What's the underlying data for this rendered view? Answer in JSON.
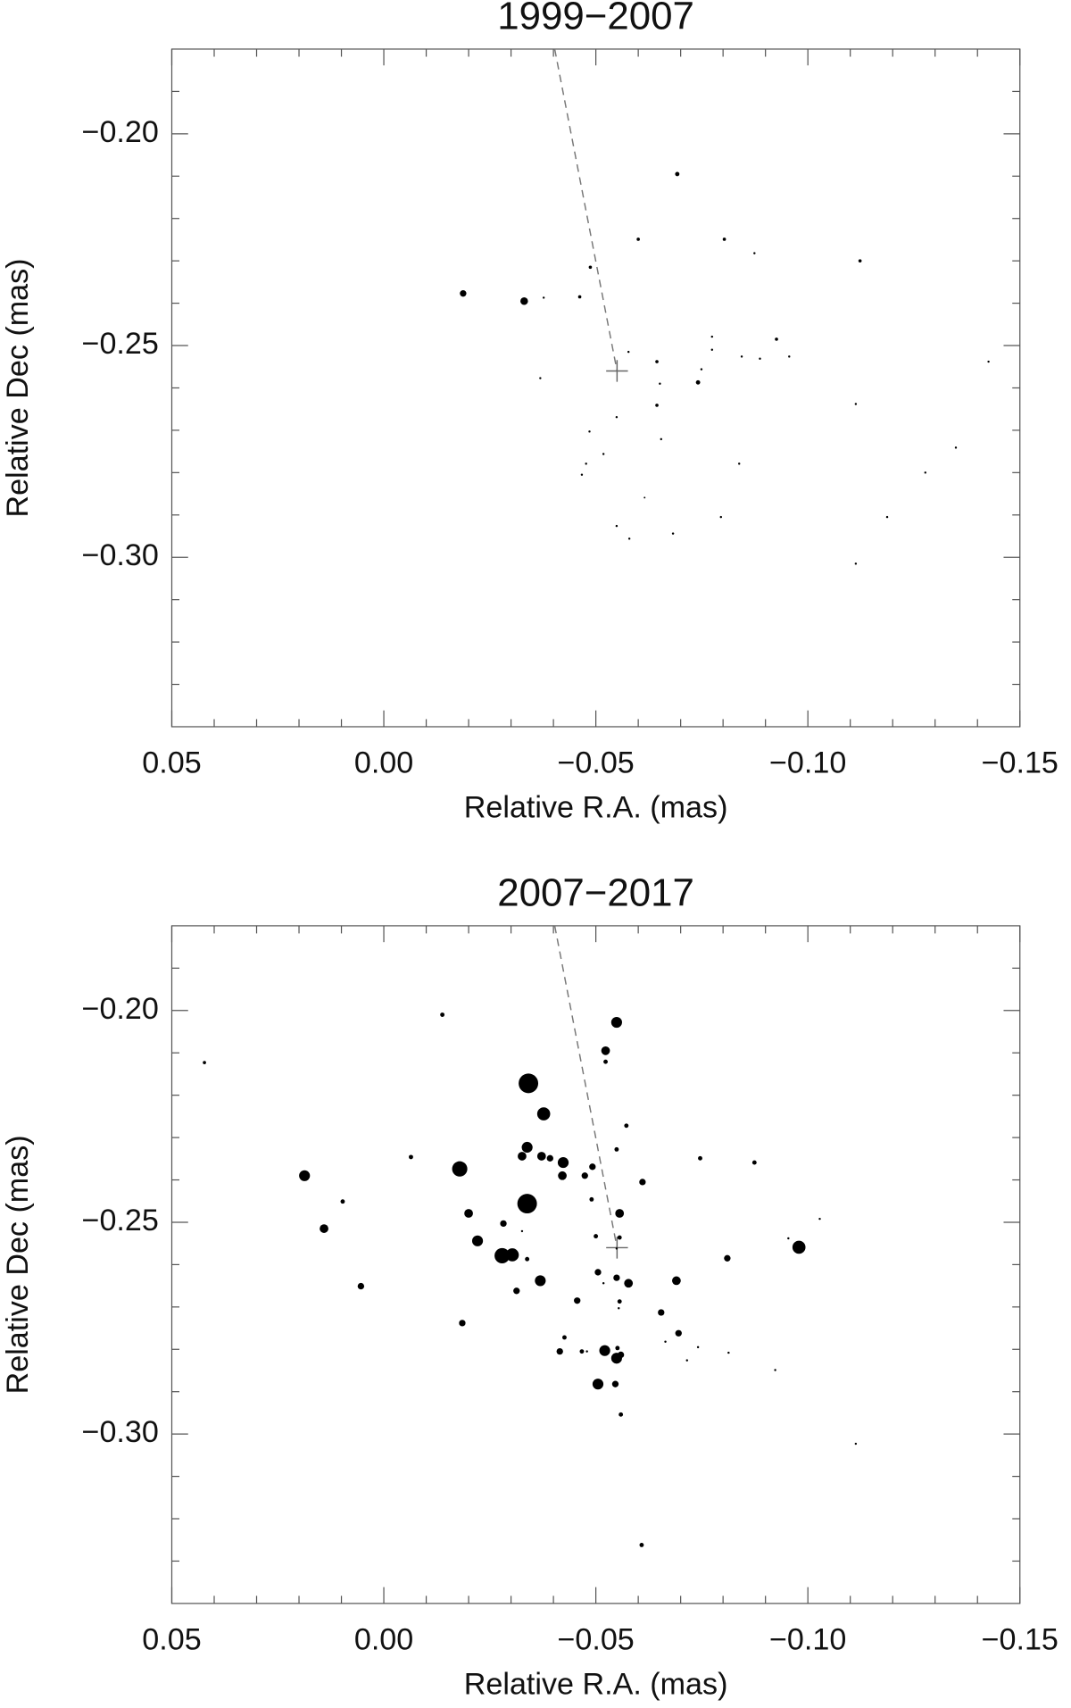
{
  "chart_data": [
    {
      "type": "scatter",
      "title": "1999−2007",
      "x_label": "Relative R.A. (mas)",
      "y_label": "Relative Dec (mas)",
      "xlim": [
        0.05,
        -0.15
      ],
      "ylim": [
        -0.34,
        -0.18
      ],
      "xticks": [
        0.05,
        {
          "value": 0,
          "label": "0.00"
        },
        {
          "value": -0.05,
          "label": "−0.05"
        },
        {
          "value": -0.1,
          "label": "−0.10"
        },
        {
          "value": -0.15,
          "label": "−0.15"
        }
      ],
      "yticks": [
        {
          "value": -0.2,
          "label": "−0.20"
        },
        {
          "value": -0.25,
          "label": "−0.25"
        },
        {
          "value": -0.3,
          "label": "−0.30"
        }
      ],
      "xminorticks": [
        0.04,
        0.03,
        0.02,
        0.01,
        -0.01,
        -0.02,
        -0.03,
        -0.04,
        -0.06,
        -0.07,
        -0.08,
        -0.09,
        -0.11,
        -0.12,
        -0.13,
        -0.14
      ],
      "yminorticks": [
        -0.19,
        -0.21,
        -0.22,
        -0.23,
        -0.24,
        -0.26,
        -0.27,
        -0.28,
        -0.29,
        -0.31,
        -0.32,
        -0.33
      ],
      "color": "#000000",
      "reference": {
        "x": -0.055,
        "y": -0.256
      },
      "reference_line": {
        "x": [
          -0.0403,
          -0.055
        ],
        "y": [
          -0.18,
          -0.256
        ]
      },
      "x": [
        -0.0692,
        -0.0187,
        -0.0331,
        -0.0377,
        -0.0462,
        -0.0487,
        -0.06,
        -0.0803,
        -0.0874,
        -0.1123,
        -0.0577,
        -0.0644,
        -0.0651,
        -0.0741,
        -0.0774,
        -0.0774,
        -0.0749,
        -0.0844,
        -0.0926,
        -0.0887,
        -0.0956,
        -0.1426,
        -0.0369,
        -0.0549,
        -0.0644,
        -0.0654,
        -0.0485,
        -0.0518,
        -0.0477,
        -0.0467,
        -0.0838,
        -0.1113,
        -0.1349,
        -0.1277,
        -0.1187,
        -0.0795,
        -0.0615,
        -0.0549,
        -0.0579,
        -0.0682,
        -0.1113
      ],
      "y": [
        -0.2095,
        -0.2377,
        -0.2395,
        -0.2387,
        -0.2385,
        -0.2315,
        -0.2249,
        -0.2249,
        -0.2282,
        -0.23,
        -0.2515,
        -0.2538,
        -0.259,
        -0.2587,
        -0.251,
        -0.2479,
        -0.2556,
        -0.2526,
        -0.2485,
        -0.2531,
        -0.2526,
        -0.2538,
        -0.2577,
        -0.2669,
        -0.2641,
        -0.2721,
        -0.2703,
        -0.2756,
        -0.2779,
        -0.2805,
        -0.2779,
        -0.2638,
        -0.2741,
        -0.28,
        -0.2905,
        -0.2905,
        -0.2859,
        -0.2926,
        -0.2956,
        -0.2944,
        -0.3015
      ],
      "sizes": [
        2,
        3,
        3.5,
        1,
        1.5,
        1.5,
        1.5,
        1.5,
        1,
        1.5,
        1,
        1.5,
        1,
        2,
        1,
        1,
        1,
        1,
        1.5,
        1,
        1,
        1,
        1,
        1,
        1.5,
        1,
        1,
        1,
        1,
        1,
        1,
        1,
        1,
        1,
        1,
        1,
        0.8,
        1,
        1,
        1,
        1
      ]
    },
    {
      "type": "scatter",
      "title": "2007−2017",
      "x_label": "Relative R.A. (mas)",
      "y_label": "Relative Dec (mas)",
      "xlim": [
        0.05,
        -0.15
      ],
      "ylim": [
        -0.34,
        -0.18
      ],
      "xticks": [
        0.05,
        {
          "value": 0,
          "label": "0.00"
        },
        {
          "value": -0.05,
          "label": "−0.05"
        },
        {
          "value": -0.1,
          "label": "−0.10"
        },
        {
          "value": -0.15,
          "label": "−0.15"
        }
      ],
      "yticks": [
        {
          "value": -0.2,
          "label": "−0.20"
        },
        {
          "value": -0.25,
          "label": "−0.25"
        },
        {
          "value": -0.3,
          "label": "−0.30"
        }
      ],
      "xminorticks": [
        0.04,
        0.03,
        0.02,
        0.01,
        -0.01,
        -0.02,
        -0.03,
        -0.04,
        -0.06,
        -0.07,
        -0.08,
        -0.09,
        -0.11,
        -0.12,
        -0.13,
        -0.14
      ],
      "yminorticks": [
        -0.19,
        -0.21,
        -0.22,
        -0.23,
        -0.24,
        -0.26,
        -0.27,
        -0.28,
        -0.29,
        -0.31,
        -0.32,
        -0.33
      ],
      "color": "#000000",
      "reference": {
        "x": -0.055,
        "y": -0.256
      },
      "reference_line": {
        "x": [
          -0.0403,
          -0.055
        ],
        "y": [
          -0.18,
          -0.256
        ]
      },
      "x": [
        0.0423,
        -0.0138,
        -0.0549,
        -0.0341,
        -0.0377,
        -0.0523,
        -0.0523,
        -0.0572,
        -0.0549,
        -0.0746,
        -0.0874,
        -0.061,
        0.0187,
        -0.0064,
        -0.0179,
        -0.0326,
        -0.0338,
        -0.0372,
        -0.0392,
        -0.0423,
        -0.0421,
        -0.0474,
        -0.0492,
        -0.0338,
        0.0097,
        0.0141,
        -0.02,
        -0.0221,
        -0.0279,
        -0.0303,
        -0.0338,
        -0.0326,
        -0.0369,
        -0.0313,
        -0.0282,
        -0.049,
        -0.0556,
        -0.0556,
        -0.05,
        -0.0549,
        -0.0505,
        -0.0549,
        -0.0577,
        -0.069,
        -0.0518,
        -0.0556,
        -0.0554,
        -0.0456,
        -0.0654,
        -0.0695,
        -0.0664,
        -0.0741,
        -0.0715,
        -0.081,
        -0.0813,
        -0.0923,
        -0.0954,
        -0.1028,
        -0.0979,
        0.0054,
        -0.0185,
        -0.0426,
        -0.0415,
        -0.0467,
        -0.0521,
        -0.0551,
        -0.0549,
        -0.0559,
        -0.0479,
        -0.0505,
        -0.0546,
        -0.0559,
        -0.0608,
        -0.1113
      ],
      "y": [
        -0.2123,
        -0.201,
        -0.2028,
        -0.2172,
        -0.2244,
        -0.2095,
        -0.2121,
        -0.2272,
        -0.2328,
        -0.2349,
        -0.2359,
        -0.2405,
        -0.239,
        -0.2346,
        -0.2374,
        -0.2344,
        -0.2323,
        -0.2344,
        -0.2349,
        -0.2359,
        -0.239,
        -0.239,
        -0.2369,
        -0.2456,
        -0.2451,
        -0.2515,
        -0.2479,
        -0.2544,
        -0.2579,
        -0.2577,
        -0.2587,
        -0.2521,
        -0.2638,
        -0.2662,
        -0.2503,
        -0.2446,
        -0.2479,
        -0.2536,
        -0.2533,
        -0.2562,
        -0.2618,
        -0.2631,
        -0.2644,
        -0.2638,
        -0.2644,
        -0.2687,
        -0.2703,
        -0.2685,
        -0.2713,
        -0.2762,
        -0.2782,
        -0.2795,
        -0.2826,
        -0.2585,
        -0.2808,
        -0.2849,
        -0.2538,
        -0.2492,
        -0.2559,
        -0.2651,
        -0.2738,
        -0.2772,
        -0.2805,
        -0.2805,
        -0.2803,
        -0.2797,
        -0.2821,
        -0.2813,
        -0.2805,
        -0.2882,
        -0.2882,
        -0.2954,
        -0.3262,
        -0.3023
      ],
      "sizes": [
        1.5,
        2,
        5,
        9,
        6,
        4,
        2,
        2,
        2,
        2,
        2,
        3,
        5,
        2,
        7,
        4,
        5,
        4,
        3,
        5,
        4,
        3,
        3,
        9,
        2,
        4,
        4,
        5,
        7,
        6,
        2,
        1,
        5,
        3,
        3,
        2,
        4,
        2,
        2,
        1,
        3,
        3,
        4,
        4,
        1,
        2,
        1,
        3,
        3,
        3,
        1,
        1,
        1,
        3,
        1,
        1,
        1,
        1,
        6,
        3,
        3,
        2,
        3,
        2,
        5,
        2,
        5,
        3,
        1,
        5,
        3,
        2,
        2,
        1
      ]
    }
  ]
}
